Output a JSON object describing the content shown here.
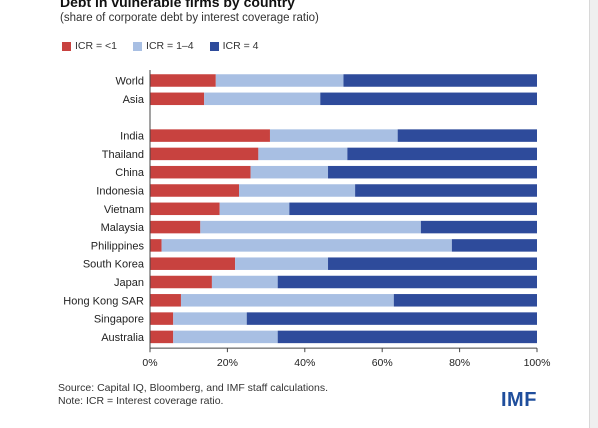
{
  "header": {
    "title": "Debt in vulnerable firms by country",
    "subtitle": "(share of corporate debt by interest coverage ratio)"
  },
  "footer": {
    "source": "Source: Capital IQ, Bloomberg, and IMF staff calculations.",
    "note": "Note: ICR = Interest coverage ratio.",
    "logo": "IMF"
  },
  "colors": {
    "icr_low": "#c8423f",
    "icr_mid": "#a8bfe3",
    "icr_high": "#2e4b9b"
  },
  "chart_data": {
    "type": "bar",
    "orientation": "horizontal",
    "stacked": true,
    "categories": [
      "World",
      "Asia",
      "India",
      "Thailand",
      "China",
      "Indonesia",
      "Vietnam",
      "Malaysia",
      "Philippines",
      "South Korea",
      "Japan",
      "Hong Kong SAR",
      "Singapore",
      "Australia"
    ],
    "series": [
      {
        "name": "ICR = <1",
        "values": [
          17,
          14,
          31,
          28,
          26,
          23,
          18,
          13,
          3,
          22,
          16,
          8,
          6,
          6
        ]
      },
      {
        "name": "ICR = 1–4",
        "values": [
          33,
          30,
          33,
          23,
          20,
          30,
          18,
          57,
          75,
          24,
          17,
          55,
          19,
          27
        ]
      },
      {
        "name": "ICR = 4",
        "values": [
          50,
          56,
          36,
          49,
          54,
          47,
          64,
          30,
          22,
          54,
          67,
          37,
          75,
          67
        ]
      }
    ],
    "xlim": [
      0,
      100
    ],
    "xticks": [
      "0%",
      "20%",
      "40%",
      "60%",
      "80%",
      "100%"
    ],
    "group_gap_after": "Asia",
    "legend": "top-left",
    "grid": false
  }
}
